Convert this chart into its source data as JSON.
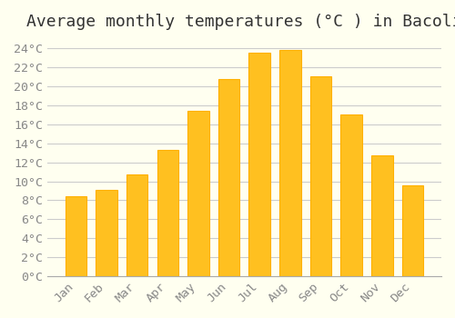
{
  "title": "Average monthly temperatures (°C ) in Bacoli",
  "months": [
    "Jan",
    "Feb",
    "Mar",
    "Apr",
    "May",
    "Jun",
    "Jul",
    "Aug",
    "Sep",
    "Oct",
    "Nov",
    "Dec"
  ],
  "values": [
    8.4,
    9.1,
    10.7,
    13.3,
    17.4,
    20.8,
    23.6,
    23.8,
    21.1,
    17.0,
    12.7,
    9.6
  ],
  "bar_color": "#FFC020",
  "bar_edge_color": "#FFB000",
  "background_color": "#FFFFF0",
  "grid_color": "#CCCCCC",
  "text_color": "#888888",
  "ylim": [
    0,
    25
  ],
  "ytick_step": 2,
  "title_fontsize": 13,
  "tick_fontsize": 9.5
}
